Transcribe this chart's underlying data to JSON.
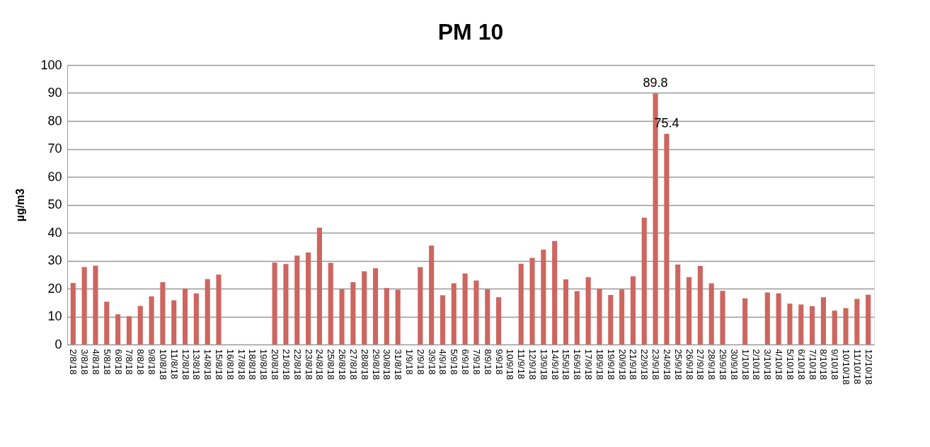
{
  "chart_data": {
    "type": "bar",
    "title": "PM 10",
    "ylabel": "µg/m3",
    "categories": [
      "2/8/18",
      "3/8/18",
      "4/8/18",
      "5/8/18",
      "6/8/18",
      "7/8/18",
      "8/8/18",
      "9/8/18",
      "10/8/18",
      "11/8/18",
      "12/8/18",
      "13/8/18",
      "14/8/18",
      "15/8/18",
      "16/8/18",
      "17/8/18",
      "18/8/18",
      "19/8/18",
      "20/8/18",
      "21/8/18",
      "22/8/18",
      "23/8/18",
      "24/8/18",
      "25/8/18",
      "26/8/18",
      "27/8/18",
      "28/8/18",
      "29/8/18",
      "30/8/18",
      "31/8/18",
      "1/9/18",
      "2/9/18",
      "3/9/18",
      "4/9/18",
      "5/9/18",
      "6/9/18",
      "7/9/18",
      "8/9/18",
      "9/9/18",
      "10/9/18",
      "11/9/18",
      "12/9/18",
      "13/9/18",
      "14/9/18",
      "15/9/18",
      "16/9/18",
      "17/9/18",
      "18/9/18",
      "19/9/18",
      "20/9/18",
      "21/9/18",
      "22/9/18",
      "23/9/18",
      "24/9/18",
      "25/9/18",
      "26/9/18",
      "27/9/18",
      "28/9/18",
      "29/9/18",
      "30/9/18",
      "1/10/18",
      "2/10/18",
      "3/10/18",
      "4/10/18",
      "5/10/18",
      "6/10/18",
      "7/10/18",
      "8/10/18",
      "9/10/18",
      "10/10/18",
      "11/10/18",
      "12/10/18"
    ],
    "values": [
      22,
      27.7,
      28.2,
      15.3,
      10.8,
      10.1,
      13.8,
      17.2,
      22.3,
      15.8,
      20,
      18.3,
      23.4,
      25,
      null,
      null,
      null,
      null,
      29.3,
      28.8,
      31.8,
      32.9,
      41.8,
      29.2,
      19.8,
      22.3,
      26.2,
      27.3,
      20.2,
      19.6,
      null,
      27.7,
      35.4,
      17.6,
      21.9,
      25.4,
      22.9,
      19.7,
      16.9,
      null,
      28.9,
      31,
      33.9,
      37,
      23.3,
      19.1,
      24.1,
      20,
      17.7,
      19.7,
      24.4,
      45.4,
      89.8,
      75.4,
      28.6,
      24.1,
      28.1,
      21.9,
      19.2,
      null,
      16.5,
      null,
      18.6,
      18.3,
      14.6,
      14.3,
      13.7,
      16.9,
      12.1,
      13,
      16.3,
      17.8
    ],
    "value_labels": [
      null,
      null,
      null,
      null,
      null,
      null,
      null,
      null,
      null,
      null,
      null,
      null,
      null,
      null,
      null,
      null,
      null,
      null,
      null,
      null,
      null,
      null,
      null,
      null,
      null,
      null,
      null,
      null,
      null,
      null,
      null,
      null,
      null,
      null,
      null,
      null,
      null,
      null,
      null,
      null,
      null,
      null,
      null,
      null,
      null,
      null,
      null,
      null,
      null,
      null,
      null,
      null,
      "89.8",
      "75.4",
      null,
      null,
      null,
      null,
      null,
      null,
      null,
      null,
      null,
      null,
      null,
      null,
      null,
      null,
      null,
      null,
      null,
      null
    ],
    "color": "#cd6660",
    "ylim": [
      0,
      100
    ],
    "yticks": [
      0,
      10,
      20,
      30,
      40,
      50,
      60,
      70,
      80,
      90,
      100
    ],
    "grid": "y"
  }
}
